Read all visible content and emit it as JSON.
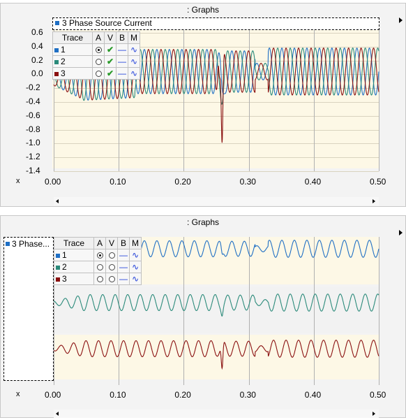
{
  "panel1": {
    "title": ": Graphs",
    "legend_title": "3 Phase Source Current",
    "y_ticks": [
      "0.6",
      "0.4",
      "0.2",
      "0.0",
      "-0.2",
      "-0.4",
      "-0.6",
      "-0.8",
      "-1.0",
      "-1.2",
      "-1.4"
    ],
    "x_axis_label": "x",
    "x_ticks": [
      "0.00",
      "0.10",
      "0.20",
      "0.30",
      "0.40",
      "0.50"
    ]
  },
  "panel2": {
    "title": ": Graphs",
    "legend_title": "3 Phase...",
    "x_axis_label": "x",
    "x_ticks": [
      "0.00",
      "0.10",
      "0.20",
      "0.30",
      "0.40",
      "0.50"
    ]
  },
  "trace_table": {
    "headers": [
      "Trace",
      "A",
      "V",
      "B",
      "M"
    ],
    "rows": [
      {
        "label": "1",
        "color": "#1f6fc4",
        "active": true
      },
      {
        "label": "2",
        "color": "#2a8a7a",
        "active": false
      },
      {
        "label": "3",
        "color": "#8a1010",
        "active": false
      }
    ]
  },
  "colors": {
    "phase1": "#1f6fc4",
    "phase2": "#2a8a7a",
    "phase3": "#8a1010",
    "plot_bg": "#fdf8e6"
  },
  "icons": {
    "checkmark": "check-icon",
    "dash": "dash-icon",
    "wave": "wave-icon",
    "play": "play-icon"
  }
}
